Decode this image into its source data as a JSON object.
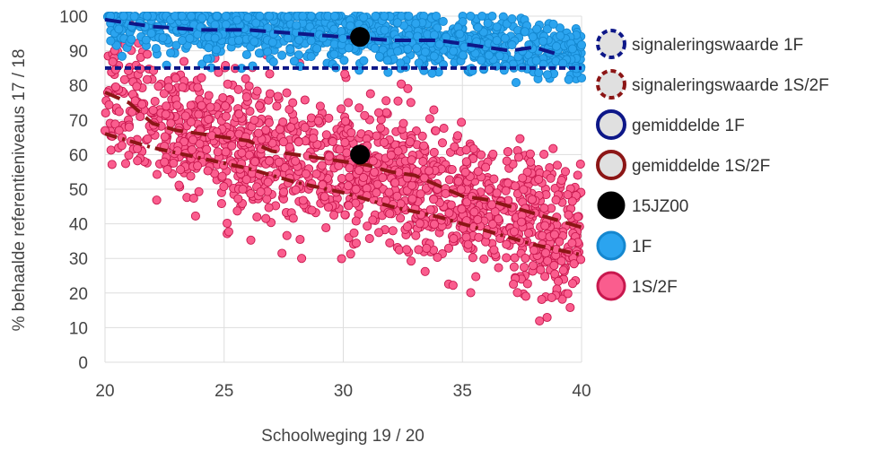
{
  "colors": {
    "pink": "#fa5d8e",
    "pink_edge": "#c8184e",
    "blue": "#2ba4ef",
    "blue_edge": "#1487cf",
    "navy": "#0d1788",
    "darkred": "#8c1616",
    "black": "#000000",
    "grid": "#dddddd",
    "legend_fill": "#e0e0e0"
  },
  "chart_data": {
    "type": "scatter",
    "xlabel": "Schoolweging 19 / 20",
    "ylabel": "% behaalde referentieniveaus 17 / 18",
    "xlim": [
      20,
      40
    ],
    "ylim": [
      0,
      100
    ],
    "xticks": [
      20,
      25,
      30,
      35,
      40
    ],
    "yticks": [
      0,
      10,
      20,
      30,
      40,
      50,
      60,
      70,
      80,
      90,
      100
    ],
    "grid": true,
    "legend_position": "right",
    "series": [
      {
        "name": "1S/2F",
        "kind": "scatter",
        "color": "#fa5d8e",
        "edge": "#c8184e",
        "trend_x": [
          20,
          21,
          22,
          23,
          24,
          25,
          26,
          27,
          28,
          29,
          30,
          31,
          32,
          33,
          34,
          35,
          36,
          37,
          38,
          39,
          40
        ],
        "trend_y": [
          79,
          75,
          71,
          68,
          66,
          64,
          62,
          60,
          59,
          57,
          56,
          54,
          53,
          51,
          49,
          47,
          45,
          43,
          41,
          38,
          36
        ],
        "spread": 10,
        "count": 1500
      },
      {
        "name": "1F",
        "kind": "scatter",
        "color": "#2ba4ef",
        "edge": "#1487cf",
        "trend_x": [
          20,
          22,
          24,
          26,
          28,
          30,
          32,
          34,
          36,
          38,
          40
        ],
        "trend_y": [
          98,
          97.5,
          97,
          96.5,
          96,
          95,
          94,
          93,
          92,
          90.5,
          89
        ],
        "spread": 4,
        "count": 1100
      },
      {
        "name": "gemiddelde 1F",
        "kind": "line",
        "dash": "long",
        "color": "#0d1788",
        "x": [
          20,
          22,
          24,
          26,
          28,
          30,
          32,
          34,
          36,
          37,
          38,
          39
        ],
        "y": [
          99,
          97,
          96,
          96,
          95,
          94,
          93,
          93,
          91,
          90,
          91,
          89
        ]
      },
      {
        "name": "gemiddelde 1S/2F",
        "kind": "line",
        "dash": "long",
        "color": "#8c1616",
        "x": [
          20,
          21,
          22,
          23,
          24,
          25,
          26,
          27,
          28,
          29,
          30,
          31,
          32,
          33,
          34,
          35,
          36,
          37,
          38,
          39,
          40
        ],
        "y": [
          78,
          75,
          69,
          67,
          66,
          65,
          64,
          61,
          60,
          59,
          58,
          57,
          55,
          54,
          51,
          48,
          47,
          45,
          43,
          41,
          39
        ]
      },
      {
        "name": "signaleringswaarde 1F",
        "kind": "line",
        "dash": "short",
        "color": "#0d1788",
        "x": [
          20,
          40
        ],
        "y": [
          85,
          85
        ]
      },
      {
        "name": "signaleringswaarde 1S/2F",
        "kind": "line",
        "dash": "dashdot",
        "color": "#8c1616",
        "x": [
          20,
          22,
          24,
          26,
          28,
          30,
          32,
          34,
          36,
          38,
          40
        ],
        "y": [
          66,
          62,
          59,
          56,
          52,
          49,
          45,
          42,
          38,
          34,
          31
        ]
      },
      {
        "name": "15JZ00",
        "kind": "marker",
        "color": "#000000",
        "x": [
          30.7,
          30.7
        ],
        "y": [
          94,
          60
        ]
      }
    ],
    "legend": [
      {
        "label": "signaleringswaarde 1F",
        "style": "dashed-ring",
        "color": "#0d1788"
      },
      {
        "label": "signaleringswaarde 1S/2F",
        "style": "dashed-ring",
        "color": "#8c1616"
      },
      {
        "label": "gemiddelde 1F",
        "style": "solid-ring",
        "color": "#0d1788"
      },
      {
        "label": "gemiddelde 1S/2F",
        "style": "solid-ring",
        "color": "#8c1616"
      },
      {
        "label": "15JZ00",
        "style": "filled",
        "color": "#000000"
      },
      {
        "label": "1F",
        "style": "filled-ring",
        "color": "#2ba4ef"
      },
      {
        "label": "1S/2F",
        "style": "filled-ring",
        "color": "#fa5d8e"
      }
    ]
  }
}
